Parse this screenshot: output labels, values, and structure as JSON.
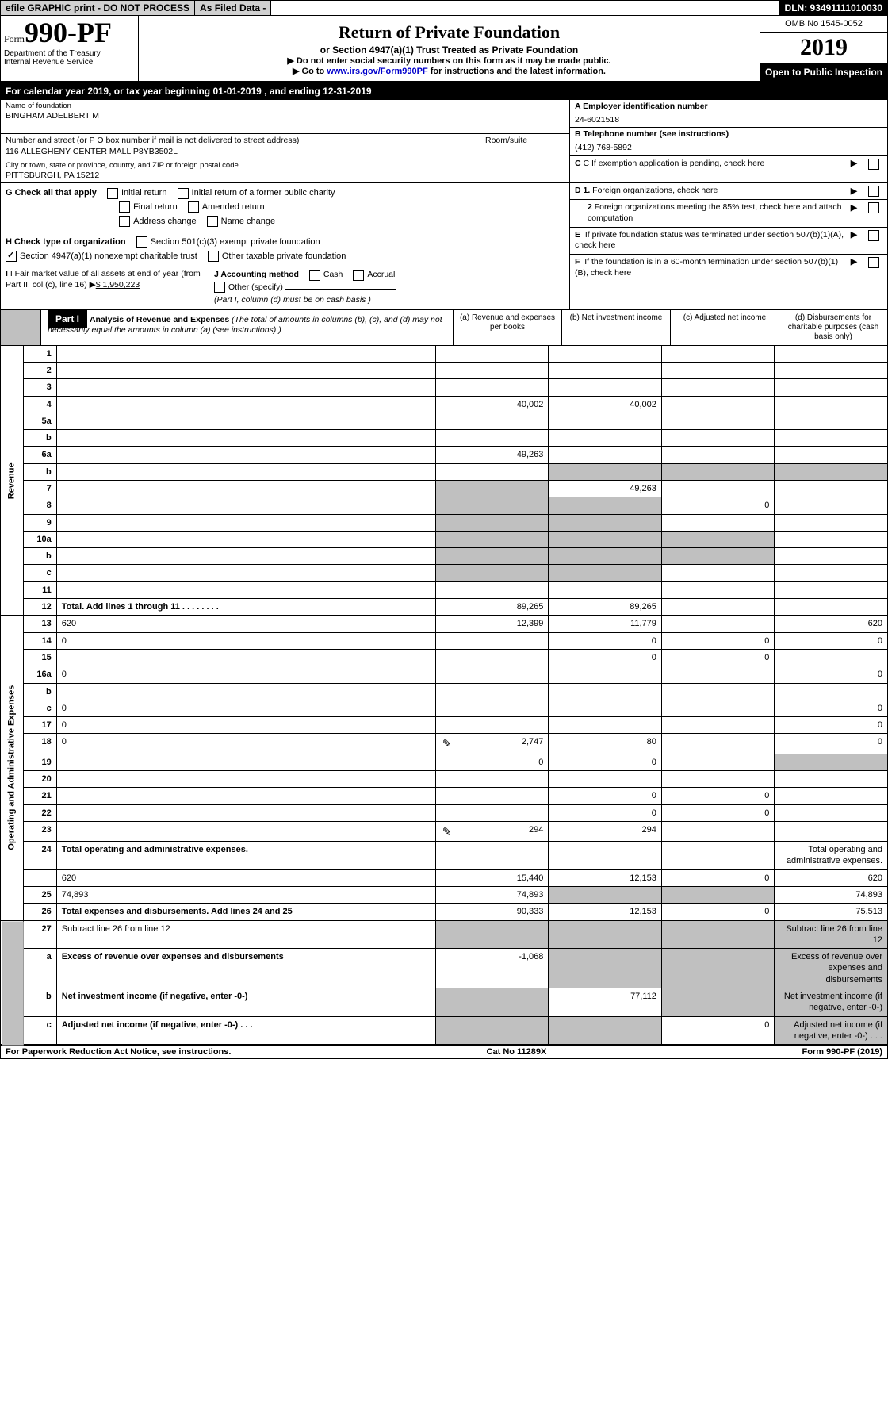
{
  "topbar": {
    "efile": "efile GRAPHIC print - DO NOT PROCESS",
    "asfiled": "As Filed Data -",
    "dln": "DLN: 93491111010030"
  },
  "header": {
    "form_prefix": "Form",
    "form_number": "990-PF",
    "dept": "Department of the Treasury",
    "irs": "Internal Revenue Service",
    "title": "Return of Private Foundation",
    "subtitle": "or Section 4947(a)(1) Trust Treated as Private Foundation",
    "inst1": "▶ Do not enter social security numbers on this form as it may be made public.",
    "inst2_pre": "▶ Go to ",
    "inst2_link": "www.irs.gov/Form990PF",
    "inst2_post": " for instructions and the latest information.",
    "omb": "OMB No 1545-0052",
    "year": "2019",
    "open": "Open to Public Inspection"
  },
  "calendar": "For calendar year 2019, or tax year beginning 01-01-2019                             , and ending 12-31-2019",
  "info": {
    "name_label": "Name of foundation",
    "name": "BINGHAM ADELBERT M",
    "ein_label": "A Employer identification number",
    "ein": "24-6021518",
    "addr_label": "Number and street (or P O  box number if mail is not delivered to street address)",
    "addr": "116 ALLEGHENY CENTER MALL P8YB3502L",
    "room_label": "Room/suite",
    "phone_label": "B Telephone number (see instructions)",
    "phone": "(412) 768-5892",
    "city_label": "City or town, state or province, country, and ZIP or foreign postal code",
    "city": "PITTSBURGH, PA  15212",
    "c_label": "C If exemption application is pending, check here"
  },
  "checks": {
    "g": "G Check all that apply",
    "g_opts": [
      "Initial return",
      "Initial return of a former public charity",
      "Final return",
      "Amended return",
      "Address change",
      "Name change"
    ],
    "h": "H Check type of organization",
    "h1": "Section 501(c)(3) exempt private foundation",
    "h2": "Section 4947(a)(1) nonexempt charitable trust",
    "h3": "Other taxable private foundation",
    "i": "I Fair market value of all assets at end of year (from Part II, col  (c), line 16)",
    "i_val": "$  1,950,223",
    "j": "J Accounting method",
    "j_opts": [
      "Cash",
      "Accrual"
    ],
    "j_other": "Other (specify)",
    "j_note": "(Part I, column (d) must be on cash basis )",
    "d1": "D 1. Foreign organizations, check here",
    "d2": "2 Foreign organizations meeting the 85% test, check here and attach computation",
    "e": "E  If private foundation status was terminated under section 507(b)(1)(A), check here",
    "f": "F  If the foundation is in a 60-month termination under section 507(b)(1)(B), check here"
  },
  "part1": {
    "label": "Part I",
    "title": "Analysis of Revenue and Expenses",
    "title_note": "(The total of amounts in columns (b), (c), and (d) may not necessarily equal the amounts in column (a) (see instructions) )",
    "col_a": "(a)    Revenue and expenses per books",
    "col_b": "(b)   Net investment income",
    "col_c": "(c)   Adjusted net income",
    "col_d": "(d)   Disbursements for charitable purposes (cash basis only)"
  },
  "side": {
    "revenue": "Revenue",
    "expenses": "Operating and Administrative Expenses"
  },
  "rows": [
    {
      "n": "1",
      "d": "",
      "a": "",
      "b": "",
      "c": ""
    },
    {
      "n": "2",
      "d": "",
      "a": "",
      "b": "",
      "c": "",
      "bold_not": true
    },
    {
      "n": "3",
      "d": "",
      "a": "",
      "b": "",
      "c": ""
    },
    {
      "n": "4",
      "d": "",
      "a": "40,002",
      "b": "40,002",
      "c": ""
    },
    {
      "n": "5a",
      "d": "",
      "a": "",
      "b": "",
      "c": ""
    },
    {
      "n": "b",
      "d": "",
      "a": "",
      "b": "",
      "c": "",
      "underline": true
    },
    {
      "n": "6a",
      "d": "",
      "a": "49,263",
      "b": "",
      "c": ""
    },
    {
      "n": "b",
      "d": "",
      "a": "",
      "b": "",
      "c": "",
      "shade_bcd": true,
      "underline": true
    },
    {
      "n": "7",
      "d": "",
      "a": "",
      "b": "49,263",
      "c": "",
      "shade_a": true
    },
    {
      "n": "8",
      "d": "",
      "a": "",
      "b": "",
      "c": "0",
      "shade_ab": true
    },
    {
      "n": "9",
      "d": "",
      "a": "",
      "b": "",
      "c": "",
      "shade_ab": true
    },
    {
      "n": "10a",
      "d": "",
      "a": "",
      "b": "",
      "c": "",
      "shade_abc": true,
      "inline_box": true
    },
    {
      "n": "b",
      "d": "",
      "a": "",
      "b": "",
      "c": "",
      "shade_abc": true,
      "inline_box": true
    },
    {
      "n": "c",
      "d": "",
      "a": "",
      "b": "",
      "c": "",
      "shade_ab": true
    },
    {
      "n": "11",
      "d": "",
      "a": "",
      "b": "",
      "c": ""
    },
    {
      "n": "12",
      "d": "",
      "a": "89,265",
      "b": "89,265",
      "c": "",
      "bold": true
    }
  ],
  "exp_rows": [
    {
      "n": "13",
      "d": "620",
      "a": "12,399",
      "b": "11,779",
      "c": ""
    },
    {
      "n": "14",
      "d": "0",
      "a": "",
      "b": "0",
      "c": "0"
    },
    {
      "n": "15",
      "d": "",
      "a": "",
      "b": "0",
      "c": "0"
    },
    {
      "n": "16a",
      "d": "0",
      "a": "",
      "b": "",
      "c": ""
    },
    {
      "n": "b",
      "d": "",
      "a": "",
      "b": "",
      "c": ""
    },
    {
      "n": "c",
      "d": "0",
      "a": "",
      "b": "",
      "c": ""
    },
    {
      "n": "17",
      "d": "0",
      "a": "",
      "b": "",
      "c": ""
    },
    {
      "n": "18",
      "d": "0",
      "a": "2,747",
      "b": "80",
      "c": "",
      "attach": true
    },
    {
      "n": "19",
      "d": "",
      "a": "0",
      "b": "0",
      "c": "",
      "shade_d": true
    },
    {
      "n": "20",
      "d": "",
      "a": "",
      "b": "",
      "c": ""
    },
    {
      "n": "21",
      "d": "",
      "a": "",
      "b": "0",
      "c": "0"
    },
    {
      "n": "22",
      "d": "",
      "a": "",
      "b": "0",
      "c": "0"
    },
    {
      "n": "23",
      "d": "",
      "a": "294",
      "b": "294",
      "c": "",
      "attach": true
    },
    {
      "n": "24",
      "d": "Total operating and administrative expenses.",
      "bold": true,
      "noborder": true
    },
    {
      "n": "",
      "d": "620",
      "a": "15,440",
      "b": "12,153",
      "c": "0"
    },
    {
      "n": "25",
      "d": "74,893",
      "a": "74,893",
      "b": "",
      "c": "",
      "shade_bc": true
    },
    {
      "n": "26",
      "d": "75,513",
      "a": "90,333",
      "b": "12,153",
      "c": "0",
      "bold": true
    }
  ],
  "final_rows": [
    {
      "n": "27",
      "d": "Subtract line 26 from line 12",
      "shade_all": true
    },
    {
      "n": "a",
      "d": "Excess of revenue over expenses and disbursements",
      "a": "-1,068",
      "bold": true,
      "shade_bcd": true
    },
    {
      "n": "b",
      "d": "Net investment income (if negative, enter -0-)",
      "b": "77,112",
      "bold": true,
      "shade_a": true,
      "shade_cd": true
    },
    {
      "n": "c",
      "d": "Adjusted net income (if negative, enter -0-)   .   .   .",
      "c": "0",
      "bold": true,
      "shade_ab": true,
      "shade_d": true
    }
  ],
  "footer": {
    "left": "For Paperwork Reduction Act Notice, see instructions.",
    "center": "Cat  No  11289X",
    "right": "Form 990-PF (2019)"
  }
}
